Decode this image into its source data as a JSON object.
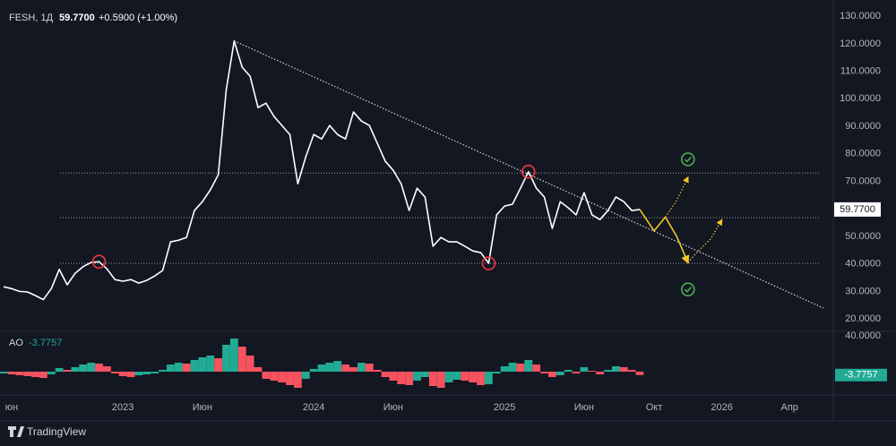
{
  "header": {
    "symbol": "FESH, 1Д",
    "change": "+0.5900 (+1.00%)"
  },
  "footer": {
    "brand": "TradingView"
  },
  "chart_data": [
    {
      "type": "line",
      "categories": [
        null,
        "юн",
        null,
        null,
        null,
        null,
        null,
        null,
        null,
        null,
        null,
        null,
        null,
        null,
        null,
        "2023",
        null,
        null,
        null,
        null,
        null,
        null,
        null,
        null,
        null,
        "Июн",
        null,
        null,
        null,
        null,
        null,
        null,
        null,
        null,
        null,
        null,
        null,
        null,
        null,
        "2024",
        null,
        null,
        null,
        null,
        null,
        null,
        null,
        null,
        null,
        "Июн",
        null,
        null,
        null,
        null,
        null,
        null,
        null,
        null,
        null,
        null,
        null,
        null,
        null,
        "2025",
        null,
        null,
        null,
        null,
        null,
        null,
        null,
        null,
        null,
        "Июн",
        null,
        null,
        null,
        null,
        null,
        null,
        null,
        "Окт",
        null,
        null,
        null,
        null,
        null,
        "2026",
        null,
        null,
        null,
        null,
        null,
        "Апр",
        null,
        null,
        null
      ],
      "ylim": [
        15.8,
        135.9
      ],
      "yticks": [
        {
          "value": 130,
          "label": "130.0000"
        },
        {
          "value": 120,
          "label": "120.0000"
        },
        {
          "value": 110,
          "label": "110.0000"
        },
        {
          "value": 100,
          "label": "100.0000"
        },
        {
          "value": 90,
          "label": "90.0000"
        },
        {
          "value": 80,
          "label": "80.0000"
        },
        {
          "value": 70,
          "label": "70.0000"
        },
        {
          "value": 60,
          "label": "60.0000"
        },
        {
          "value": 50,
          "label": "50.0000"
        },
        {
          "value": 40,
          "label": "40.0000"
        },
        {
          "value": 30,
          "label": "30.0000"
        },
        {
          "value": 20,
          "label": "20.0000"
        }
      ],
      "grid": false,
      "last_price": {
        "value": 59.77,
        "label": "59.7700"
      },
      "hlines": {
        "color": "#9598a1",
        "values": [
          73,
          56.8,
          40.2
        ]
      },
      "series": [
        {
          "color": "#ffffff",
          "style": "solid",
          "values": [
            31.7,
            31,
            30,
            29.8,
            28.5,
            27,
            31,
            38,
            32.4,
            36.6,
            39,
            40.5,
            40.8,
            38.2,
            34.3,
            33.7,
            34.3,
            33,
            34,
            35.6,
            37.6,
            48,
            48.6,
            49.6,
            59.4,
            62.6,
            66.9,
            72.4,
            103.3,
            121,
            111.5,
            108.2,
            96.8,
            98.4,
            93.6,
            90.3,
            87,
            69.1,
            78.9,
            87,
            85.4,
            90.3,
            87,
            85.4,
            95.2,
            91.9,
            90.3,
            83.8,
            77.3,
            74,
            69.1,
            59.4,
            67.5,
            64.3,
            46.4,
            49.6,
            48,
            48,
            46.4,
            44.7,
            44.1,
            40.2,
            57.8,
            61,
            61.7,
            67.5,
            73.5,
            67.5,
            64.3,
            52.9,
            62.6,
            60.4,
            57.8,
            65.9,
            57.8,
            56.1,
            59.4,
            64.3,
            62.6,
            59.4,
            59.77,
            null,
            null,
            null,
            null,
            null,
            null,
            null,
            null,
            null,
            null,
            null,
            null,
            null,
            null,
            null,
            null
          ]
        },
        {
          "color": "#d1d4dc",
          "style": "dotted",
          "values": [
            null,
            null,
            null,
            null,
            null,
            null,
            null,
            null,
            null,
            null,
            null,
            null,
            null,
            null,
            null,
            null,
            null,
            null,
            null,
            null,
            null,
            null,
            null,
            null,
            null,
            null,
            null,
            null,
            null,
            121.04,
            119.73,
            118.42,
            117.11,
            115.8,
            114.49,
            113.18,
            111.87,
            110.56,
            109.25,
            107.94,
            106.63,
            105.32,
            104.01,
            102.7,
            101.39,
            100.08,
            98.77,
            97.46,
            96.15,
            94.84,
            93.52,
            92.21,
            90.9,
            89.59,
            88.28,
            86.97,
            85.66,
            84.35,
            83.04,
            81.73,
            80.42,
            79.11,
            77.8,
            76.49,
            75.18,
            73.87,
            72.56,
            71.25,
            69.94,
            68.63,
            67.32,
            66.01,
            64.7,
            63.39,
            62.08,
            60.77,
            59.46,
            58.15,
            56.84,
            55.53,
            54.22,
            51.85,
            49.99,
            48.13,
            46.27,
            44.41,
            42.55,
            40.69,
            38.83,
            36.97,
            35.11,
            33.25,
            31.39,
            29.53,
            27.67,
            25.81,
            23.95
          ]
        },
        {
          "color": "#f0c528",
          "style": "solid",
          "arrow": true,
          "values": [
            null,
            null,
            null,
            null,
            null,
            null,
            null,
            null,
            null,
            null,
            null,
            null,
            null,
            null,
            null,
            null,
            null,
            null,
            null,
            null,
            null,
            null,
            null,
            null,
            null,
            null,
            null,
            null,
            null,
            null,
            null,
            null,
            null,
            null,
            null,
            null,
            null,
            null,
            null,
            null,
            null,
            null,
            null,
            null,
            null,
            null,
            null,
            null,
            null,
            null,
            null,
            null,
            null,
            null,
            null,
            null,
            null,
            null,
            null,
            null,
            null,
            null,
            null,
            null,
            null,
            null,
            null,
            null,
            null,
            null,
            null,
            null,
            null,
            null,
            null,
            null,
            null,
            null,
            null,
            null,
            59.77,
            52,
            57,
            50,
            40.5,
            null,
            null,
            null,
            null,
            null,
            null,
            null,
            null,
            null,
            null,
            null,
            null
          ]
        },
        {
          "color": "#f0c528",
          "style": "dotted",
          "arrow": true,
          "values": [
            null,
            null,
            null,
            null,
            null,
            null,
            null,
            null,
            null,
            null,
            null,
            null,
            null,
            null,
            null,
            null,
            null,
            null,
            null,
            null,
            null,
            null,
            null,
            null,
            null,
            null,
            null,
            null,
            null,
            null,
            null,
            null,
            null,
            null,
            null,
            null,
            null,
            null,
            null,
            null,
            null,
            null,
            null,
            null,
            null,
            null,
            null,
            null,
            null,
            null,
            null,
            null,
            null,
            null,
            null,
            null,
            null,
            null,
            null,
            null,
            null,
            null,
            null,
            null,
            null,
            null,
            null,
            null,
            null,
            null,
            null,
            null,
            null,
            null,
            null,
            null,
            null,
            null,
            null,
            null,
            null,
            null,
            57,
            63,
            71.5,
            null,
            null,
            null,
            null,
            null,
            null,
            null,
            null,
            null,
            null,
            null,
            null
          ]
        },
        {
          "color": "#f0c528",
          "style": "dotted",
          "arrow": true,
          "values": [
            null,
            null,
            null,
            null,
            null,
            null,
            null,
            null,
            null,
            null,
            null,
            null,
            null,
            null,
            null,
            null,
            null,
            null,
            null,
            null,
            null,
            null,
            null,
            null,
            null,
            null,
            null,
            null,
            null,
            null,
            null,
            null,
            null,
            null,
            null,
            null,
            null,
            null,
            null,
            null,
            null,
            null,
            null,
            null,
            null,
            null,
            null,
            null,
            null,
            null,
            null,
            null,
            null,
            null,
            null,
            null,
            null,
            null,
            null,
            null,
            null,
            null,
            null,
            null,
            null,
            null,
            null,
            null,
            null,
            null,
            null,
            null,
            null,
            null,
            null,
            null,
            null,
            null,
            null,
            null,
            null,
            null,
            null,
            null,
            40.5,
            45,
            49,
            56,
            null,
            null,
            null,
            null,
            null,
            null,
            null,
            null,
            null
          ]
        },
        {
          "color": "#f23645",
          "marker": "circle",
          "values": [
            null,
            null,
            null,
            null,
            null,
            null,
            null,
            null,
            null,
            null,
            null,
            null,
            40.8,
            null,
            null,
            null,
            null,
            null,
            null,
            null,
            null,
            null,
            null,
            null,
            null,
            null,
            null,
            null,
            null,
            null,
            null,
            null,
            null,
            null,
            null,
            null,
            null,
            null,
            null,
            null,
            null,
            null,
            null,
            null,
            null,
            null,
            null,
            null,
            null,
            null,
            null,
            null,
            null,
            null,
            null,
            null,
            null,
            null,
            null,
            null,
            null,
            40.2,
            null,
            null,
            null,
            null,
            73.5,
            null,
            null,
            null,
            null,
            null,
            null,
            null,
            null,
            null,
            null,
            null,
            null,
            null,
            null,
            null,
            null,
            null,
            null,
            null,
            null,
            null,
            null,
            null,
            null,
            null,
            null,
            null,
            null,
            null,
            null
          ]
        },
        {
          "color": "#4caf50",
          "marker": "check",
          "values": [
            null,
            null,
            null,
            null,
            null,
            null,
            null,
            null,
            null,
            null,
            null,
            null,
            null,
            null,
            null,
            null,
            null,
            null,
            null,
            null,
            null,
            null,
            null,
            null,
            null,
            null,
            null,
            null,
            null,
            null,
            null,
            null,
            null,
            null,
            null,
            null,
            null,
            null,
            null,
            null,
            null,
            null,
            null,
            null,
            null,
            null,
            null,
            null,
            null,
            null,
            null,
            null,
            null,
            null,
            null,
            null,
            null,
            null,
            null,
            null,
            null,
            null,
            null,
            null,
            null,
            null,
            null,
            null,
            null,
            null,
            null,
            null,
            null,
            null,
            null,
            null,
            null,
            null,
            null,
            null,
            null,
            null,
            null,
            null,
            78,
            null,
            null,
            null,
            null,
            null,
            null,
            null,
            null,
            null,
            null,
            null,
            null
          ]
        },
        {
          "color": "#4caf50",
          "marker": "check",
          "values": [
            null,
            null,
            null,
            null,
            null,
            null,
            null,
            null,
            null,
            null,
            null,
            null,
            null,
            null,
            null,
            null,
            null,
            null,
            null,
            null,
            null,
            null,
            null,
            null,
            null,
            null,
            null,
            null,
            null,
            null,
            null,
            null,
            null,
            null,
            null,
            null,
            null,
            null,
            null,
            null,
            null,
            null,
            null,
            null,
            null,
            null,
            null,
            null,
            null,
            null,
            null,
            null,
            null,
            null,
            null,
            null,
            null,
            null,
            null,
            null,
            null,
            null,
            null,
            null,
            null,
            null,
            null,
            null,
            null,
            null,
            null,
            null,
            null,
            null,
            null,
            null,
            null,
            null,
            null,
            null,
            null,
            null,
            null,
            null,
            30.7,
            null,
            null,
            null,
            null,
            null,
            null,
            null,
            null,
            null,
            null,
            null,
            null
          ]
        }
      ]
    },
    {
      "type": "histogram-ao",
      "title": "AO",
      "ylim": [
        -26,
        44
      ],
      "yticks": [
        {
          "value": 40,
          "label": "40.0000"
        }
      ],
      "colors": {
        "up": "#22ab94",
        "down": "#f7525f"
      },
      "values": [
        -2,
        -3,
        -4,
        -5,
        -6,
        -7,
        -3,
        4,
        2,
        5,
        8,
        10,
        9,
        6,
        -2,
        -5,
        -6,
        -4,
        -3,
        -2,
        2,
        8,
        10,
        9,
        13,
        16,
        18,
        15,
        30,
        37,
        28,
        18,
        5,
        -8,
        -10,
        -12,
        -15,
        -18,
        -8,
        3,
        8,
        10,
        12,
        8,
        5,
        10,
        9,
        2,
        -6,
        -10,
        -14,
        -15,
        -10,
        -6,
        -16,
        -18,
        -12,
        -9,
        -10,
        -12,
        -15,
        -14,
        -2,
        6,
        10,
        9,
        13,
        8,
        -2,
        -6,
        -4,
        2,
        -2,
        5,
        1,
        -3,
        2,
        6,
        5,
        2,
        -3.7757
      ]
    }
  ]
}
